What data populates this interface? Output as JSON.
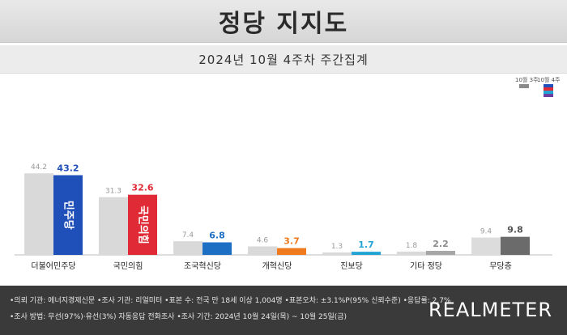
{
  "header": {
    "title": "정당 지지도",
    "subtitle": "2024년 10월 4주차 주간집계"
  },
  "legend": {
    "prev_label": "10월 3주",
    "curr_label": "10월 4주"
  },
  "colors": {
    "prev_bar": "#d9d9d9",
    "prev_bar_last": "#8a8a8a",
    "prev_label": "#9a9a9a",
    "curr_default": "#7a7a7a",
    "curr_label_default": "#7a7a7a"
  },
  "chart_data": {
    "type": "bar",
    "categories": [
      "더불어민주당",
      "국민의힘",
      "조국혁신당",
      "개혁신당",
      "진보당",
      "기타 정당",
      "무당층"
    ],
    "series": [
      {
        "name": "10월 3주",
        "values": [
          44.2,
          31.3,
          7.4,
          4.6,
          1.3,
          1.8,
          9.4
        ]
      },
      {
        "name": "10월 4주",
        "values": [
          43.2,
          32.6,
          6.8,
          3.7,
          1.7,
          2.2,
          9.8
        ]
      }
    ],
    "current_colors": [
      "#1f4fb8",
      "#e02b36",
      "#1d6fc4",
      "#f07a1e",
      "#21a3d6",
      "#a6a6a6",
      "#6b6b6b"
    ],
    "current_label_colors": [
      "#1f4fb8",
      "#e02b36",
      "#1d6fc4",
      "#f07a1e",
      "#21a3d6",
      "#8a8a8a",
      "#555555"
    ],
    "bar_inner_labels": [
      "민주당",
      "국민의힘",
      "",
      "",
      "",
      "",
      ""
    ],
    "ylim": [
      0,
      50
    ],
    "grid": false,
    "legend_position": "top-right"
  },
  "footer": {
    "line1": "•의뢰 기관: 에너지경제신문  •조사 기관: 리얼미터  •표본 수: 전국 만 18세 이상 1,004명  •표본오차: ±3.1%P(95% 신뢰수준)  •응답률: 2.7%",
    "line2": "•조사 방법: 무선(97%)·유선(3%) 자동응답 전화조사  •조사 기간: 2024년 10월 24일(목) ~ 10월 25일(금)",
    "brand": "REALMETER"
  }
}
